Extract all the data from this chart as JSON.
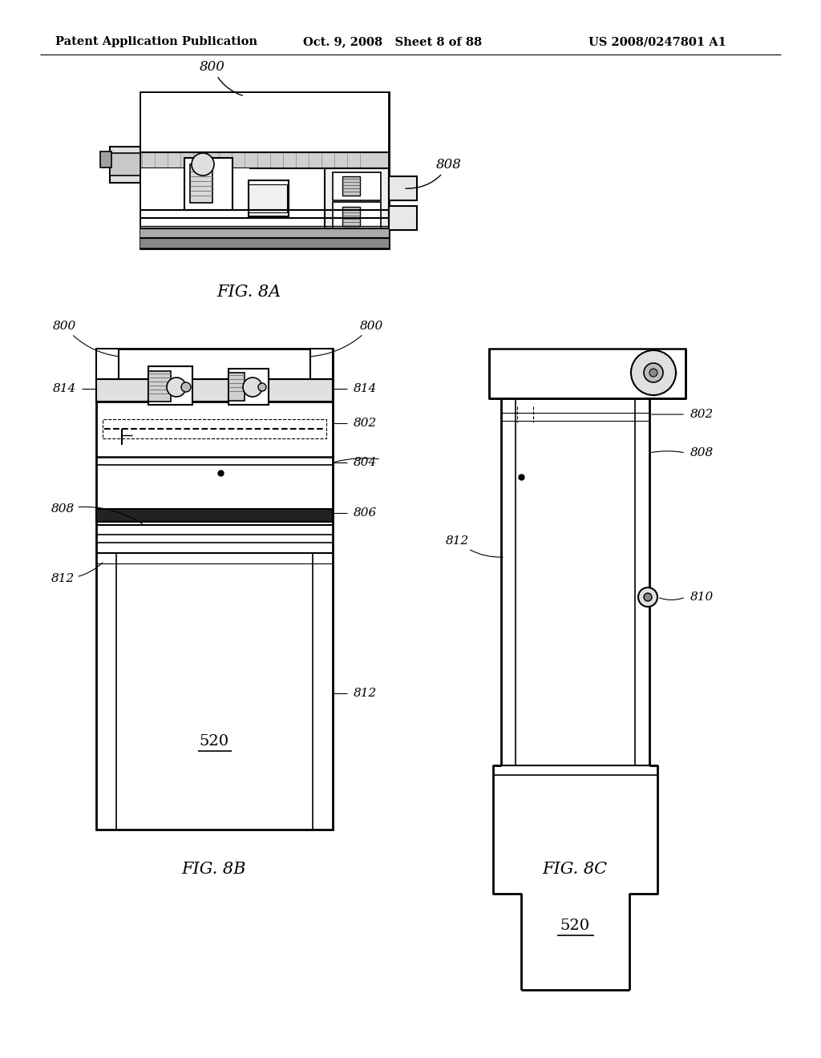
{
  "bg_color": "#ffffff",
  "header_left": "Patent Application Publication",
  "header_mid": "Oct. 9, 2008   Sheet 8 of 88",
  "header_right": "US 2008/0247801 A1",
  "fig8a_label": "FIG. 8A",
  "fig8b_label": "FIG. 8B",
  "fig8c_label": "FIG. 8C",
  "line_color": "#000000",
  "dark_fill": "#2a2a2a",
  "gray_fill": "#bbbbbb",
  "light_gray": "#e8e8e8",
  "mid_gray": "#888888"
}
